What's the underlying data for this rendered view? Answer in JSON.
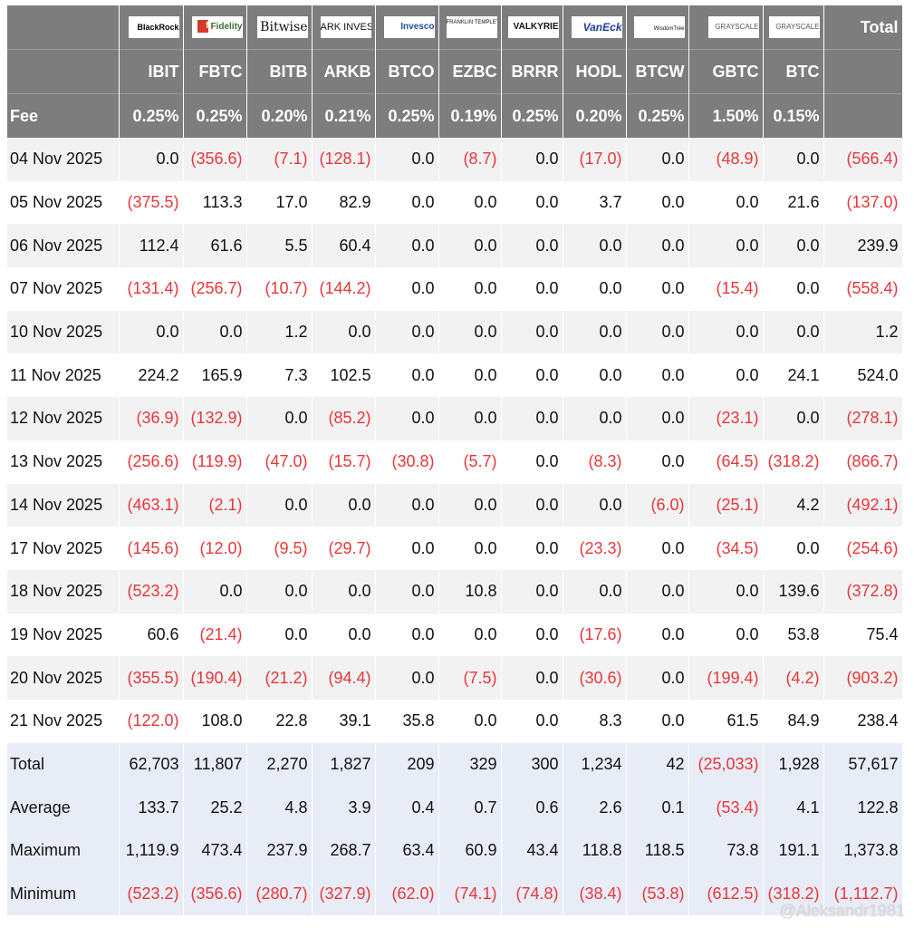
{
  "header": {
    "logos": [
      "BlackRock",
      "Fidelity",
      "Bitwise",
      "ARK INVEST",
      "Invesco",
      "FRANKLIN TEMPLETON",
      "VALKYRIE",
      "VanEck",
      "WisdomTree",
      "GRAYSCALE",
      "GRAYSCALE"
    ],
    "total_label": "Total",
    "tickers": [
      "IBIT",
      "FBTC",
      "BITB",
      "ARKB",
      "BTCO",
      "EZBC",
      "BRRR",
      "HODL",
      "BTCW",
      "GBTC",
      "BTC"
    ],
    "fee_label": "Fee",
    "fees": [
      "0.25%",
      "0.25%",
      "0.20%",
      "0.21%",
      "0.25%",
      "0.19%",
      "0.25%",
      "0.20%",
      "0.25%",
      "1.50%",
      "0.15%"
    ]
  },
  "rows": [
    {
      "date": "04 Nov 2025",
      "values": [
        "0.0",
        "(356.6)",
        "(7.1)",
        "(128.1)",
        "0.0",
        "(8.7)",
        "0.0",
        "(17.0)",
        "0.0",
        "(48.9)",
        "0.0",
        "(566.4)"
      ]
    },
    {
      "date": "05 Nov 2025",
      "values": [
        "(375.5)",
        "113.3",
        "17.0",
        "82.9",
        "0.0",
        "0.0",
        "0.0",
        "3.7",
        "0.0",
        "0.0",
        "21.6",
        "(137.0)"
      ]
    },
    {
      "date": "06 Nov 2025",
      "values": [
        "112.4",
        "61.6",
        "5.5",
        "60.4",
        "0.0",
        "0.0",
        "0.0",
        "0.0",
        "0.0",
        "0.0",
        "0.0",
        "239.9"
      ]
    },
    {
      "date": "07 Nov 2025",
      "values": [
        "(131.4)",
        "(256.7)",
        "(10.7)",
        "(144.2)",
        "0.0",
        "0.0",
        "0.0",
        "0.0",
        "0.0",
        "(15.4)",
        "0.0",
        "(558.4)"
      ]
    },
    {
      "date": "10 Nov 2025",
      "values": [
        "0.0",
        "0.0",
        "1.2",
        "0.0",
        "0.0",
        "0.0",
        "0.0",
        "0.0",
        "0.0",
        "0.0",
        "0.0",
        "1.2"
      ]
    },
    {
      "date": "11 Nov 2025",
      "values": [
        "224.2",
        "165.9",
        "7.3",
        "102.5",
        "0.0",
        "0.0",
        "0.0",
        "0.0",
        "0.0",
        "0.0",
        "24.1",
        "524.0"
      ]
    },
    {
      "date": "12 Nov 2025",
      "values": [
        "(36.9)",
        "(132.9)",
        "0.0",
        "(85.2)",
        "0.0",
        "0.0",
        "0.0",
        "0.0",
        "0.0",
        "(23.1)",
        "0.0",
        "(278.1)"
      ]
    },
    {
      "date": "13 Nov 2025",
      "values": [
        "(256.6)",
        "(119.9)",
        "(47.0)",
        "(15.7)",
        "(30.8)",
        "(5.7)",
        "0.0",
        "(8.3)",
        "0.0",
        "(64.5)",
        "(318.2)",
        "(866.7)"
      ]
    },
    {
      "date": "14 Nov 2025",
      "values": [
        "(463.1)",
        "(2.1)",
        "0.0",
        "0.0",
        "0.0",
        "0.0",
        "0.0",
        "0.0",
        "(6.0)",
        "(25.1)",
        "4.2",
        "(492.1)"
      ]
    },
    {
      "date": "17 Nov 2025",
      "values": [
        "(145.6)",
        "(12.0)",
        "(9.5)",
        "(29.7)",
        "0.0",
        "0.0",
        "0.0",
        "(23.3)",
        "0.0",
        "(34.5)",
        "0.0",
        "(254.6)"
      ]
    },
    {
      "date": "18 Nov 2025",
      "values": [
        "(523.2)",
        "0.0",
        "0.0",
        "0.0",
        "0.0",
        "10.8",
        "0.0",
        "0.0",
        "0.0",
        "0.0",
        "139.6",
        "(372.8)"
      ]
    },
    {
      "date": "19 Nov 2025",
      "values": [
        "60.6",
        "(21.4)",
        "0.0",
        "0.0",
        "0.0",
        "0.0",
        "0.0",
        "(17.6)",
        "0.0",
        "0.0",
        "53.8",
        "75.4"
      ]
    },
    {
      "date": "20 Nov 2025",
      "values": [
        "(355.5)",
        "(190.4)",
        "(21.2)",
        "(94.4)",
        "0.0",
        "(7.5)",
        "0.0",
        "(30.6)",
        "0.0",
        "(199.4)",
        "(4.2)",
        "(903.2)"
      ]
    },
    {
      "date": "21 Nov 2025",
      "values": [
        "(122.0)",
        "108.0",
        "22.8",
        "39.1",
        "35.8",
        "0.0",
        "0.0",
        "8.3",
        "0.0",
        "61.5",
        "84.9",
        "238.4"
      ]
    }
  ],
  "summary": [
    {
      "label": "Total",
      "values": [
        "62,703",
        "11,807",
        "2,270",
        "1,827",
        "209",
        "329",
        "300",
        "1,234",
        "42",
        "(25,033)",
        "1,928",
        "57,617"
      ]
    },
    {
      "label": "Average",
      "values": [
        "133.7",
        "25.2",
        "4.8",
        "3.9",
        "0.4",
        "0.7",
        "0.6",
        "2.6",
        "0.1",
        "(53.4)",
        "4.1",
        "122.8"
      ]
    },
    {
      "label": "Maximum",
      "values": [
        "1,119.9",
        "473.4",
        "237.9",
        "268.7",
        "63.4",
        "60.9",
        "43.4",
        "118.8",
        "118.5",
        "73.8",
        "191.1",
        "1,373.8"
      ]
    },
    {
      "label": "Minimum",
      "values": [
        "(523.2)",
        "(356.6)",
        "(280.7)",
        "(327.9)",
        "(62.0)",
        "(74.1)",
        "(74.8)",
        "(38.4)",
        "(53.8)",
        "(612.5)",
        "(318.2)",
        "(1,112.7)"
      ]
    }
  ],
  "watermark": "@Aleksandr1981",
  "colors": {
    "header_bg": "#7d7d7d",
    "negative": "#e8363a",
    "summary_bg": "#e8ecf7",
    "stripe": "#f2f2f2"
  }
}
